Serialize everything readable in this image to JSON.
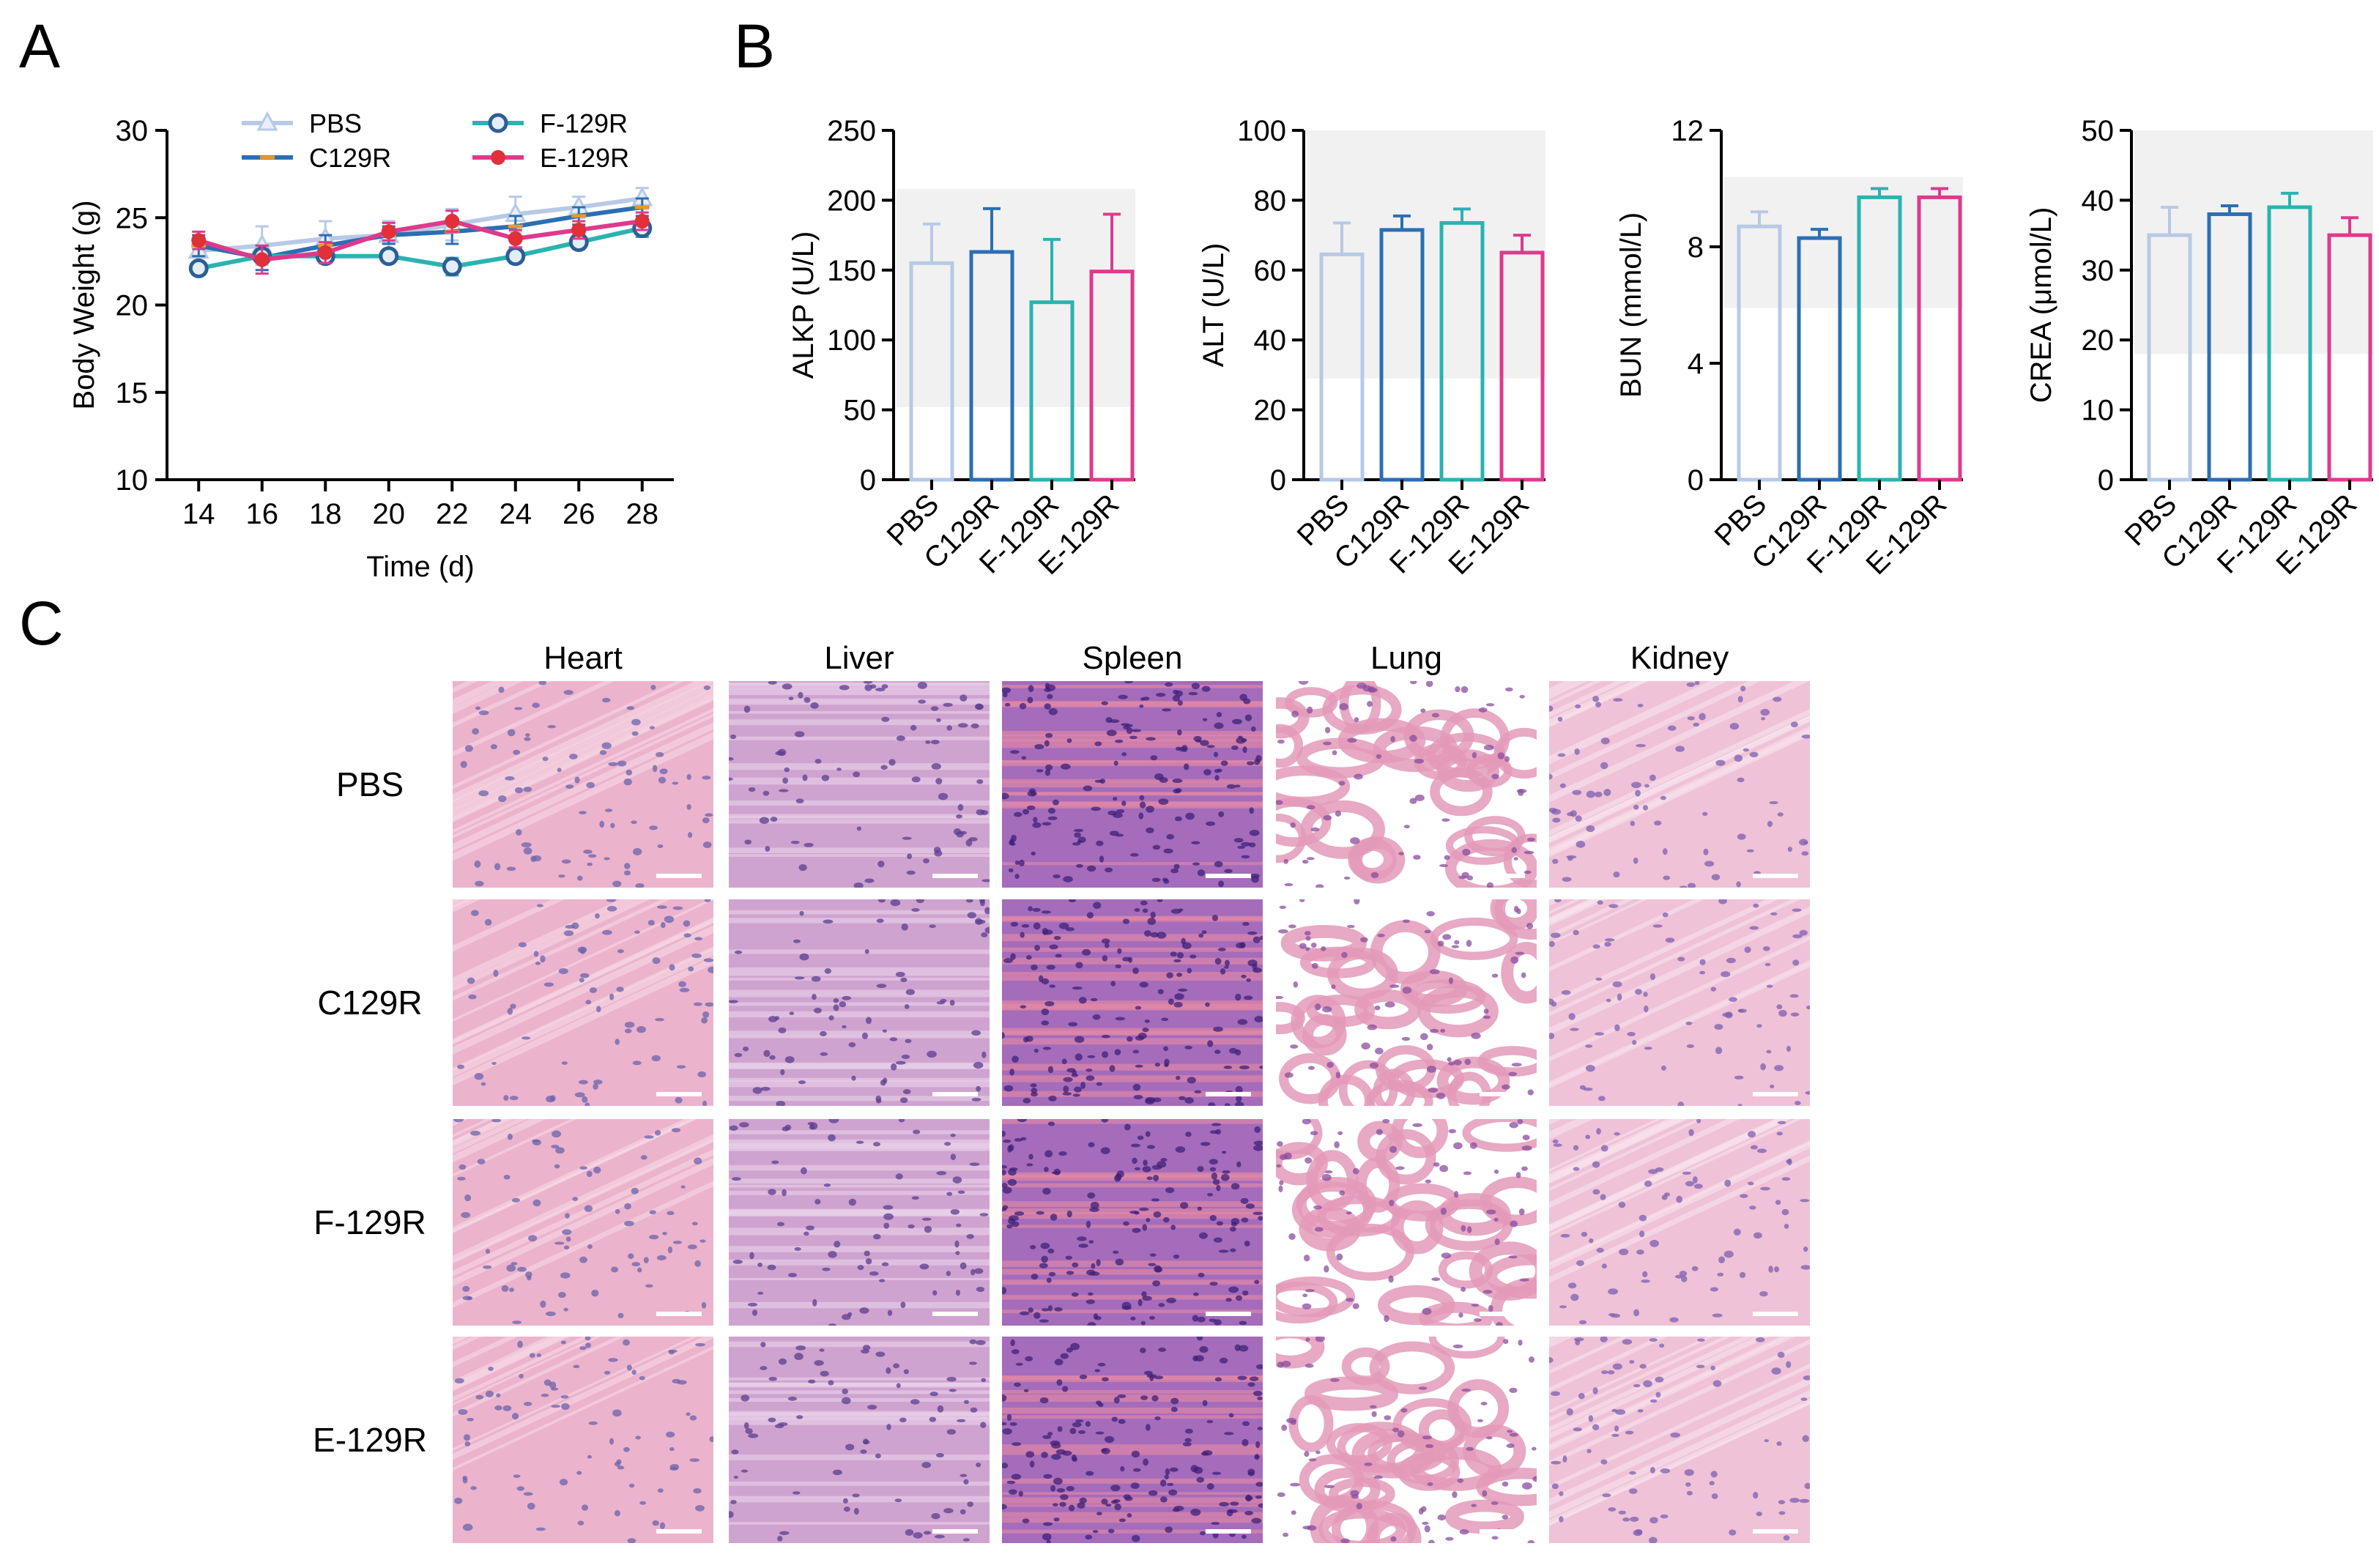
{
  "panels": {
    "a": "A",
    "b": "B",
    "c": "C"
  },
  "colors": {
    "PBS": "#b7c9e6",
    "C129R": "#2b6fb3",
    "F-129R": "#2ab3b0",
    "E-129R": "#de3a8c",
    "E-129R-marker": "#e0303a",
    "normal_range": "#f1f1f1"
  },
  "chart_data": [
    {
      "id": "body-weight",
      "type": "line",
      "title": "",
      "xlabel": "Time (d)",
      "ylabel": "Body Weight (g)",
      "x": [
        14,
        16,
        18,
        20,
        22,
        24,
        26,
        28
      ],
      "xlim": [
        13,
        29
      ],
      "ylim": [
        10,
        30
      ],
      "yticks": [
        10,
        15,
        20,
        25,
        30
      ],
      "legend": "top",
      "series": [
        {
          "name": "PBS",
          "marker": "triangle",
          "values": [
            23.1,
            23.4,
            23.8,
            24.0,
            24.6,
            25.2,
            25.6,
            26.1
          ],
          "errors": [
            0.9,
            1.1,
            1.0,
            0.8,
            0.9,
            1.0,
            0.6,
            0.6
          ]
        },
        {
          "name": "C129R",
          "marker": "dash",
          "values": [
            23.4,
            22.7,
            23.4,
            24.0,
            24.2,
            24.5,
            25.1,
            25.6
          ],
          "errors": [
            0.6,
            0.7,
            0.6,
            0.5,
            0.7,
            0.6,
            0.5,
            0.5
          ]
        },
        {
          "name": "F-129R",
          "marker": "circle",
          "values": [
            22.1,
            22.8,
            22.8,
            22.8,
            22.2,
            22.8,
            23.6,
            24.4
          ],
          "errors": [
            0.3,
            0.4,
            0.4,
            0.3,
            0.5,
            0.4,
            0.4,
            0.5
          ]
        },
        {
          "name": "E-129R",
          "marker": "dot",
          "values": [
            23.7,
            22.6,
            23.0,
            24.2,
            24.8,
            23.8,
            24.3,
            24.8
          ],
          "errors": [
            0.5,
            0.8,
            0.6,
            0.5,
            0.6,
            0.5,
            0.5,
            0.5
          ]
        }
      ]
    },
    {
      "id": "alkp",
      "type": "bar",
      "ylabel": "ALKP (U/L)",
      "categories": [
        "PBS",
        "C129R",
        "F-129R",
        "E-129R"
      ],
      "values": [
        155,
        163,
        127,
        149
      ],
      "errors": [
        28,
        31,
        45,
        41
      ],
      "ylim": [
        0,
        250
      ],
      "yticks": [
        0,
        50,
        100,
        150,
        200,
        250
      ],
      "normal_range": [
        52,
        208
      ]
    },
    {
      "id": "alt",
      "type": "bar",
      "ylabel": "ALT (U/L)",
      "categories": [
        "PBS",
        "C129R",
        "F-129R",
        "E-129R"
      ],
      "values": [
        64.5,
        71.5,
        73.5,
        65
      ],
      "errors": [
        9,
        4,
        4,
        5
      ],
      "ylim": [
        0,
        100
      ],
      "yticks": [
        0,
        20,
        40,
        60,
        80,
        100
      ],
      "normal_range": [
        29,
        100
      ]
    },
    {
      "id": "bun",
      "type": "bar",
      "ylabel": "BUN (mmol/L)",
      "categories": [
        "PBS",
        "C129R",
        "F-129R",
        "E-129R"
      ],
      "values": [
        8.7,
        8.3,
        9.7,
        9.7
      ],
      "errors": [
        0.5,
        0.3,
        0.3,
        0.3
      ],
      "ylim": [
        0,
        12
      ],
      "yticks": [
        0,
        4,
        8,
        12
      ],
      "normal_range": [
        5.9,
        10.4
      ]
    },
    {
      "id": "crea",
      "type": "bar",
      "ylabel": "CREA (μmol/L)",
      "categories": [
        "PBS",
        "C129R",
        "F-129R",
        "E-129R"
      ],
      "values": [
        35,
        38,
        39,
        35
      ],
      "errors": [
        4,
        1.2,
        2,
        2.5
      ],
      "ylim": [
        0,
        50
      ],
      "yticks": [
        0,
        10,
        20,
        30,
        40,
        50
      ],
      "normal_range": [
        18,
        50
      ]
    }
  ],
  "histology": {
    "columns": [
      "Heart",
      "Liver",
      "Spleen",
      "Lung",
      "Kidney"
    ],
    "rows": [
      "PBS",
      "C129R",
      "F-129R",
      "E-129R"
    ],
    "tile_colors": {
      "Heart": {
        "base": "#ecb3cc",
        "cell": "#6a63ac",
        "streak": "#f6d8e4"
      },
      "Liver": {
        "base": "#cfa3cf",
        "cell": "#5b3d8f",
        "streak": "#ead3ea"
      },
      "Spleen": {
        "base": "#a46cba",
        "cell": "#3d2078",
        "streak": "#e78aa6"
      },
      "Lung": {
        "base": "#ffffff",
        "cell": "#8a4c9e",
        "streak": "#e39ab8"
      },
      "Kidney": {
        "base": "#efc2d7",
        "cell": "#7c5fb0",
        "streak": "#f8e3ec"
      }
    }
  }
}
